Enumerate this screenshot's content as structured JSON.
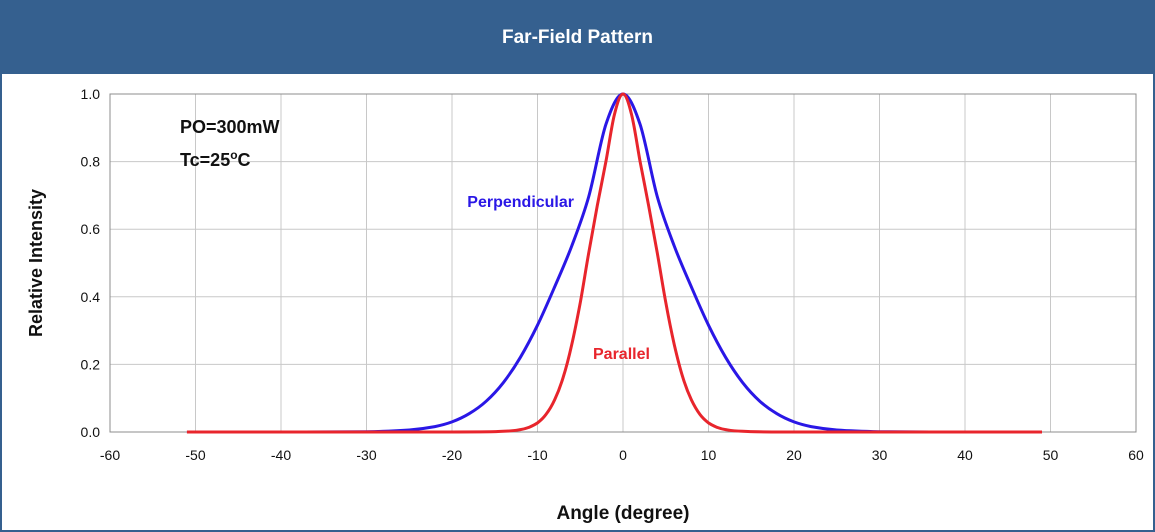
{
  "header": {
    "title": "Far-Field Pattern"
  },
  "chart_data": {
    "type": "line",
    "title": "",
    "xlabel": "Angle (degree)",
    "ylabel": "Relative Intensity",
    "xlim": [
      -60,
      60
    ],
    "ylim": [
      0,
      1
    ],
    "xticks": [
      -60,
      -50,
      -40,
      -30,
      -20,
      -10,
      0,
      10,
      20,
      30,
      40,
      50,
      60
    ],
    "yticks": [
      "0.0",
      "0.2",
      "0.4",
      "0.6",
      "0.8",
      "1.0"
    ],
    "grid": true,
    "annotations": {
      "power": "PO=300mW",
      "temp_prefix": "Tc=25",
      "temp_degree": "o",
      "temp_unit": "C"
    },
    "series": [
      {
        "name": "Perpendicular",
        "color": "#2a17e6",
        "x": [
          -51,
          -40,
          -30,
          -25,
          -22,
          -20,
          -18,
          -16,
          -14,
          -12,
          -10,
          -8,
          -6,
          -4,
          -2,
          0,
          2,
          4,
          6,
          8,
          10,
          12,
          14,
          16,
          18,
          20,
          22,
          25,
          30,
          40,
          49
        ],
        "y": [
          0,
          0,
          0.001,
          0.006,
          0.016,
          0.03,
          0.054,
          0.091,
          0.146,
          0.221,
          0.316,
          0.429,
          0.55,
          0.697,
          0.91,
          1.0,
          0.91,
          0.697,
          0.55,
          0.429,
          0.316,
          0.221,
          0.146,
          0.091,
          0.054,
          0.03,
          0.016,
          0.006,
          0.001,
          0,
          0
        ]
      },
      {
        "name": "Parallel",
        "color": "#e8252c",
        "x": [
          -51,
          -20,
          -14,
          -12,
          -11,
          -10,
          -9,
          -8,
          -7,
          -6,
          -5,
          -4,
          -3,
          -2,
          -1,
          0,
          1,
          2,
          3,
          4,
          5,
          6,
          7,
          8,
          9,
          10,
          11,
          12,
          14,
          20,
          49
        ],
        "y": [
          0,
          0,
          0.002,
          0.007,
          0.014,
          0.027,
          0.052,
          0.095,
          0.161,
          0.258,
          0.383,
          0.531,
          0.67,
          0.8,
          0.94,
          1.0,
          0.94,
          0.8,
          0.67,
          0.531,
          0.383,
          0.258,
          0.161,
          0.095,
          0.052,
          0.027,
          0.014,
          0.007,
          0.002,
          0,
          0
        ]
      }
    ]
  }
}
